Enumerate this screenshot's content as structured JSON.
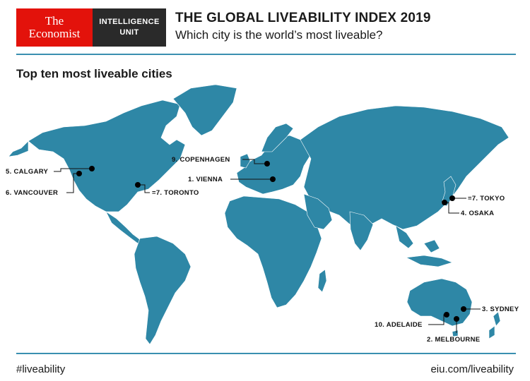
{
  "brand": {
    "logo_line1": "The",
    "logo_line2": "Economist",
    "unit_line1": "INTELLIGENCE",
    "unit_line2": "UNIT"
  },
  "header": {
    "title": "THE GLOBAL LIVEABILITY INDEX 2019",
    "subtitle": "Which city is the world’s most liveable?"
  },
  "map": {
    "section_title": "Top ten most liveable cities",
    "land_color": "#2e87a6",
    "cities": [
      {
        "label": "1. VIENNA"
      },
      {
        "label": "2. MELBOURNE"
      },
      {
        "label": "3. SYDNEY"
      },
      {
        "label": "4. OSAKA"
      },
      {
        "label": "5. CALGARY"
      },
      {
        "label": "6. VANCOUVER"
      },
      {
        "label": "=7. TOKYO"
      },
      {
        "label": "=7. TORONTO"
      },
      {
        "label": "9. COPENHAGEN"
      },
      {
        "label": "10. ADELAIDE"
      }
    ]
  },
  "footer": {
    "hashtag": "#liveability",
    "url": "eiu.com/liveability"
  }
}
